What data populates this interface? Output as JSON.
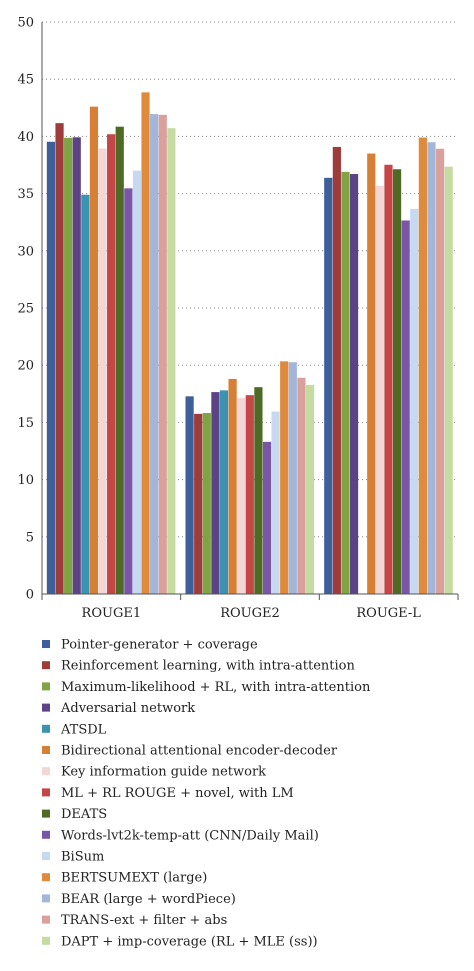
{
  "chart_data": {
    "type": "bar",
    "title": "",
    "xlabel": "",
    "ylabel": "",
    "ylim": [
      0,
      50
    ],
    "yticks": [
      0,
      5,
      10,
      15,
      20,
      25,
      30,
      35,
      40,
      45,
      50
    ],
    "grid": "horizontal dotted",
    "legend_placement": "bottom",
    "categories": [
      "ROUGE1",
      "ROUGE2",
      "ROUGE-L"
    ],
    "series": [
      {
        "name": "Pointer-generator + coverage",
        "color": "#3d5f9a",
        "values": [
          39.53,
          17.28,
          36.38
        ]
      },
      {
        "name": "Reinforcement learning, with intra-attention",
        "color": "#9e3b3b",
        "values": [
          41.16,
          15.75,
          39.08
        ]
      },
      {
        "name": "Maximum-likelihood + RL, with intra-attention",
        "color": "#7ea444",
        "values": [
          39.87,
          15.82,
          36.9
        ]
      },
      {
        "name": "Adversarial network",
        "color": "#5c4385",
        "values": [
          39.92,
          17.65,
          36.71
        ]
      },
      {
        "name": "ATSDL",
        "color": "#3a93b1",
        "values": [
          34.9,
          17.8,
          null
        ]
      },
      {
        "name": "Bidirectional attentional encoder-decoder",
        "color": "#d77f35",
        "values": [
          42.6,
          18.8,
          38.5
        ]
      },
      {
        "name": "Key information guide network",
        "color": "#f2d7d6",
        "values": [
          38.95,
          17.12,
          35.68
        ]
      },
      {
        "name": "ML + RL ROUGE + novel, with LM",
        "color": "#c54646",
        "values": [
          40.19,
          17.38,
          37.52
        ]
      },
      {
        "name": "DEATS",
        "color": "#4d6b24",
        "values": [
          40.85,
          18.08,
          37.13
        ]
      },
      {
        "name": "Words-lvt2k-temp-att (CNN/Daily Mail)",
        "color": "#7a56a8",
        "values": [
          35.46,
          13.3,
          32.65
        ]
      },
      {
        "name": "BiSum",
        "color": "#c6d9f0",
        "values": [
          37.01,
          15.95,
          33.66
        ]
      },
      {
        "name": "BERTSUMEXT (large)",
        "color": "#e08a3b",
        "values": [
          43.85,
          20.34,
          39.9
        ]
      },
      {
        "name": "BEAR (large + wordPiece)",
        "color": "#a1b6d8",
        "values": [
          41.95,
          20.26,
          39.49
        ]
      },
      {
        "name": "TRANS-ext + filter + abs",
        "color": "#d9a09c",
        "values": [
          41.89,
          18.9,
          38.92
        ]
      },
      {
        "name": "DAPT + imp-coverage (RL + MLE (ss))",
        "color": "#c4dba1",
        "values": [
          40.72,
          18.28,
          37.35
        ]
      }
    ]
  }
}
